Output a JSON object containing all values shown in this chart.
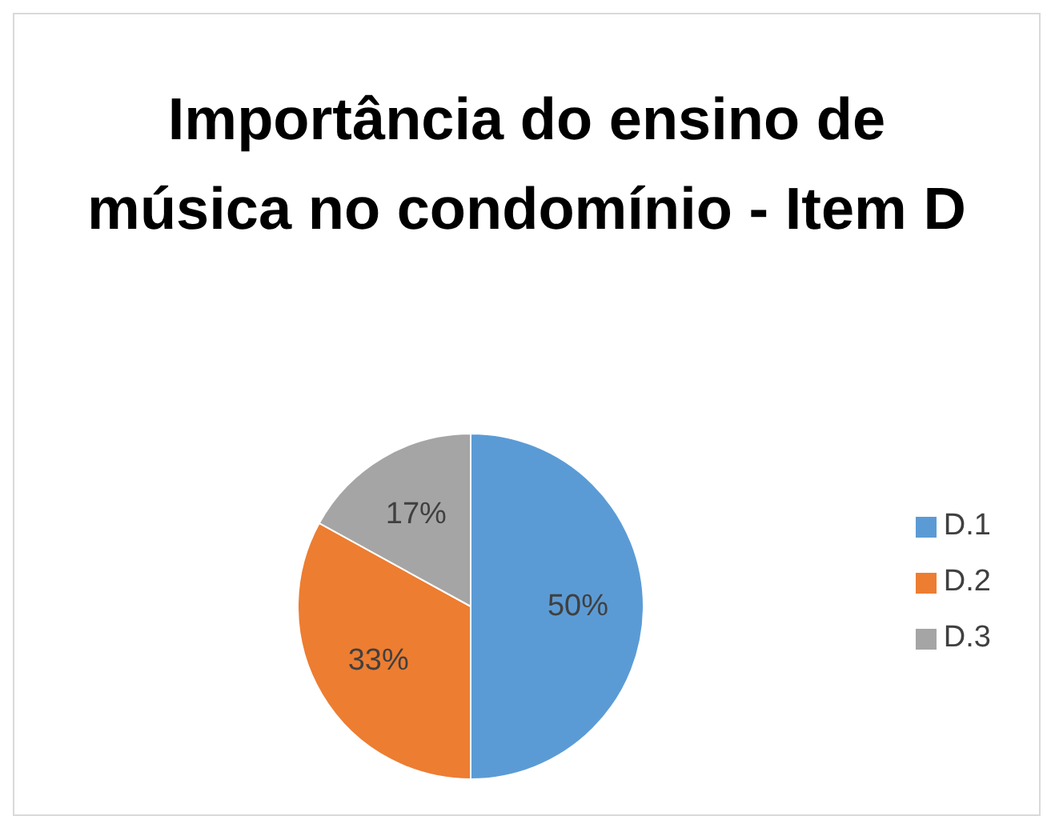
{
  "chart_data": {
    "type": "pie",
    "title": "Importância do ensino de música no condomínio - Item D",
    "categories": [
      "D.1",
      "D.2",
      "D.3"
    ],
    "values": [
      50,
      33,
      17
    ],
    "colors": [
      "#5b9bd5",
      "#ed7d31",
      "#a5a5a5"
    ],
    "value_labels": [
      "50%",
      "33%",
      "17%"
    ],
    "legend": "right"
  }
}
